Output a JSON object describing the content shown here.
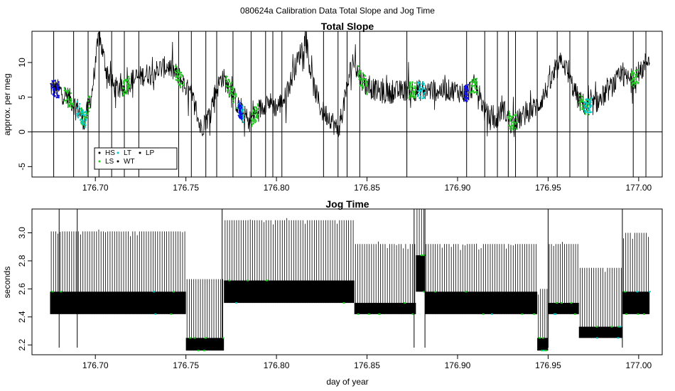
{
  "figure": {
    "title": "080624a   Calibration Data Total Slope and Jog Time"
  },
  "chart_data": [
    {
      "type": "line",
      "title": "Total Slope",
      "xlabel": "",
      "ylabel": "approx. per meg",
      "xlim": [
        176.665,
        177.013
      ],
      "ylim": [
        -6.5,
        14.5
      ],
      "x_ticks": [
        "176.70",
        "176.75",
        "176.80",
        "176.85",
        "176.90",
        "176.95",
        "177.00"
      ],
      "y_ticks": [
        "-5",
        "0",
        "5",
        "10"
      ],
      "reference_line_y": 0,
      "legend": {
        "entries": [
          {
            "label": "HS",
            "color": "#000000"
          },
          {
            "label": "LS",
            "color": "#22cc22"
          },
          {
            "label": "LT",
            "color": "#00cccc"
          },
          {
            "label": "WT",
            "color": "#000000"
          },
          {
            "label": "LP",
            "color": "#000000"
          }
        ]
      },
      "colors": {
        "HS": "#000000",
        "LS": "#22cc22",
        "LT": "#00cccc",
        "blue": "#1010ee"
      },
      "trend": [
        [
          176.675,
          6.5
        ],
        [
          176.68,
          6.0
        ],
        [
          176.685,
          5.0
        ],
        [
          176.69,
          3.5
        ],
        [
          176.694,
          1.5
        ],
        [
          176.698,
          5.5
        ],
        [
          176.702,
          14.0
        ],
        [
          176.706,
          9.0
        ],
        [
          176.71,
          6.5
        ],
        [
          176.715,
          6.0
        ],
        [
          176.72,
          7.5
        ],
        [
          176.73,
          8.5
        ],
        [
          176.74,
          9.5
        ],
        [
          176.746,
          8.0
        ],
        [
          176.75,
          6.5
        ],
        [
          176.755,
          4.0
        ],
        [
          176.758,
          0.5
        ],
        [
          176.762,
          2.0
        ],
        [
          176.766,
          5.5
        ],
        [
          176.77,
          8.0
        ],
        [
          176.775,
          6.0
        ],
        [
          176.78,
          3.0
        ],
        [
          176.785,
          1.5
        ],
        [
          176.79,
          3.0
        ],
        [
          176.795,
          4.5
        ],
        [
          176.8,
          3.5
        ],
        [
          176.805,
          5.0
        ],
        [
          176.81,
          9.0
        ],
        [
          176.816,
          13.5
        ],
        [
          176.82,
          7.0
        ],
        [
          176.825,
          3.0
        ],
        [
          176.83,
          2.0
        ],
        [
          176.834,
          0.0
        ],
        [
          176.838,
          5.0
        ],
        [
          176.842,
          10.5
        ],
        [
          176.846,
          8.0
        ],
        [
          176.85,
          6.5
        ],
        [
          176.86,
          5.5
        ],
        [
          176.87,
          6.0
        ],
        [
          176.88,
          6.0
        ],
        [
          176.89,
          6.0
        ],
        [
          176.898,
          6.0
        ],
        [
          176.905,
          5.5
        ],
        [
          176.91,
          7.0
        ],
        [
          176.915,
          3.0
        ],
        [
          176.92,
          1.0
        ],
        [
          176.925,
          3.5
        ],
        [
          176.93,
          1.0
        ],
        [
          176.935,
          2.0
        ],
        [
          176.945,
          4.0
        ],
        [
          176.952,
          7.5
        ],
        [
          176.958,
          10.5
        ],
        [
          176.962,
          7.5
        ],
        [
          176.967,
          4.5
        ],
        [
          176.972,
          3.5
        ],
        [
          176.978,
          4.5
        ],
        [
          176.985,
          6.5
        ],
        [
          176.99,
          8.0
        ],
        [
          176.995,
          7.5
        ],
        [
          177.0,
          8.0
        ],
        [
          177.006,
          11.0
        ]
      ],
      "green_ranges": [
        [
          176.682,
          176.688
        ],
        [
          176.692,
          176.697
        ],
        [
          176.715,
          176.719
        ],
        [
          176.744,
          176.749
        ],
        [
          176.772,
          176.778
        ],
        [
          176.786,
          176.79
        ],
        [
          176.845,
          176.85
        ],
        [
          176.873,
          176.877
        ],
        [
          176.907,
          176.911
        ],
        [
          176.928,
          176.933
        ],
        [
          176.967,
          176.973
        ],
        [
          176.996,
          177.0
        ]
      ],
      "cyan_ranges": [
        [
          176.69,
          176.695
        ],
        [
          176.779,
          176.782
        ],
        [
          176.878,
          176.882
        ],
        [
          176.97,
          176.974
        ]
      ],
      "blue_ranges": [
        [
          176.676,
          176.68
        ],
        [
          176.779,
          176.781
        ],
        [
          176.904,
          176.906
        ]
      ]
    },
    {
      "type": "line",
      "title": "Jog Time",
      "xlabel": "day of year",
      "ylabel": "seconds",
      "xlim": [
        176.665,
        177.013
      ],
      "ylim": [
        2.13,
        3.17
      ],
      "x_ticks": [
        "176.70",
        "176.75",
        "176.80",
        "176.85",
        "176.90",
        "176.95",
        "177.00"
      ],
      "y_ticks": [
        "2.2",
        "2.4",
        "2.6",
        "2.8",
        "3.0"
      ],
      "segments": [
        {
          "x": [
            176.675,
            176.75
          ],
          "low": 2.42,
          "mid": 2.58,
          "high": 3.01
        },
        {
          "x": [
            176.75,
            176.771
          ],
          "low": 2.16,
          "mid": 2.25,
          "high": 2.67
        },
        {
          "x": [
            176.771,
            176.843
          ],
          "low": 2.5,
          "mid": 2.66,
          "high": 3.09
        },
        {
          "x": [
            176.843,
            176.877
          ],
          "low": 2.42,
          "mid": 2.5,
          "high": 2.92
        },
        {
          "x": [
            176.877,
            176.882
          ],
          "low": 2.58,
          "mid": 2.84,
          "high": 3.17
        },
        {
          "x": [
            176.882,
            176.944
          ],
          "low": 2.42,
          "mid": 2.58,
          "high": 2.92
        },
        {
          "x": [
            176.944,
            176.95
          ],
          "low": 2.16,
          "mid": 2.25,
          "high": 2.6
        },
        {
          "x": [
            176.95,
            176.967
          ],
          "low": 2.42,
          "mid": 2.5,
          "high": 2.92
        },
        {
          "x": [
            176.967,
            176.991
          ],
          "low": 2.25,
          "mid": 2.33,
          "high": 2.75
        },
        {
          "x": [
            176.991,
            177.006
          ],
          "low": 2.42,
          "mid": 2.58,
          "high": 3.0
        }
      ]
    }
  ]
}
